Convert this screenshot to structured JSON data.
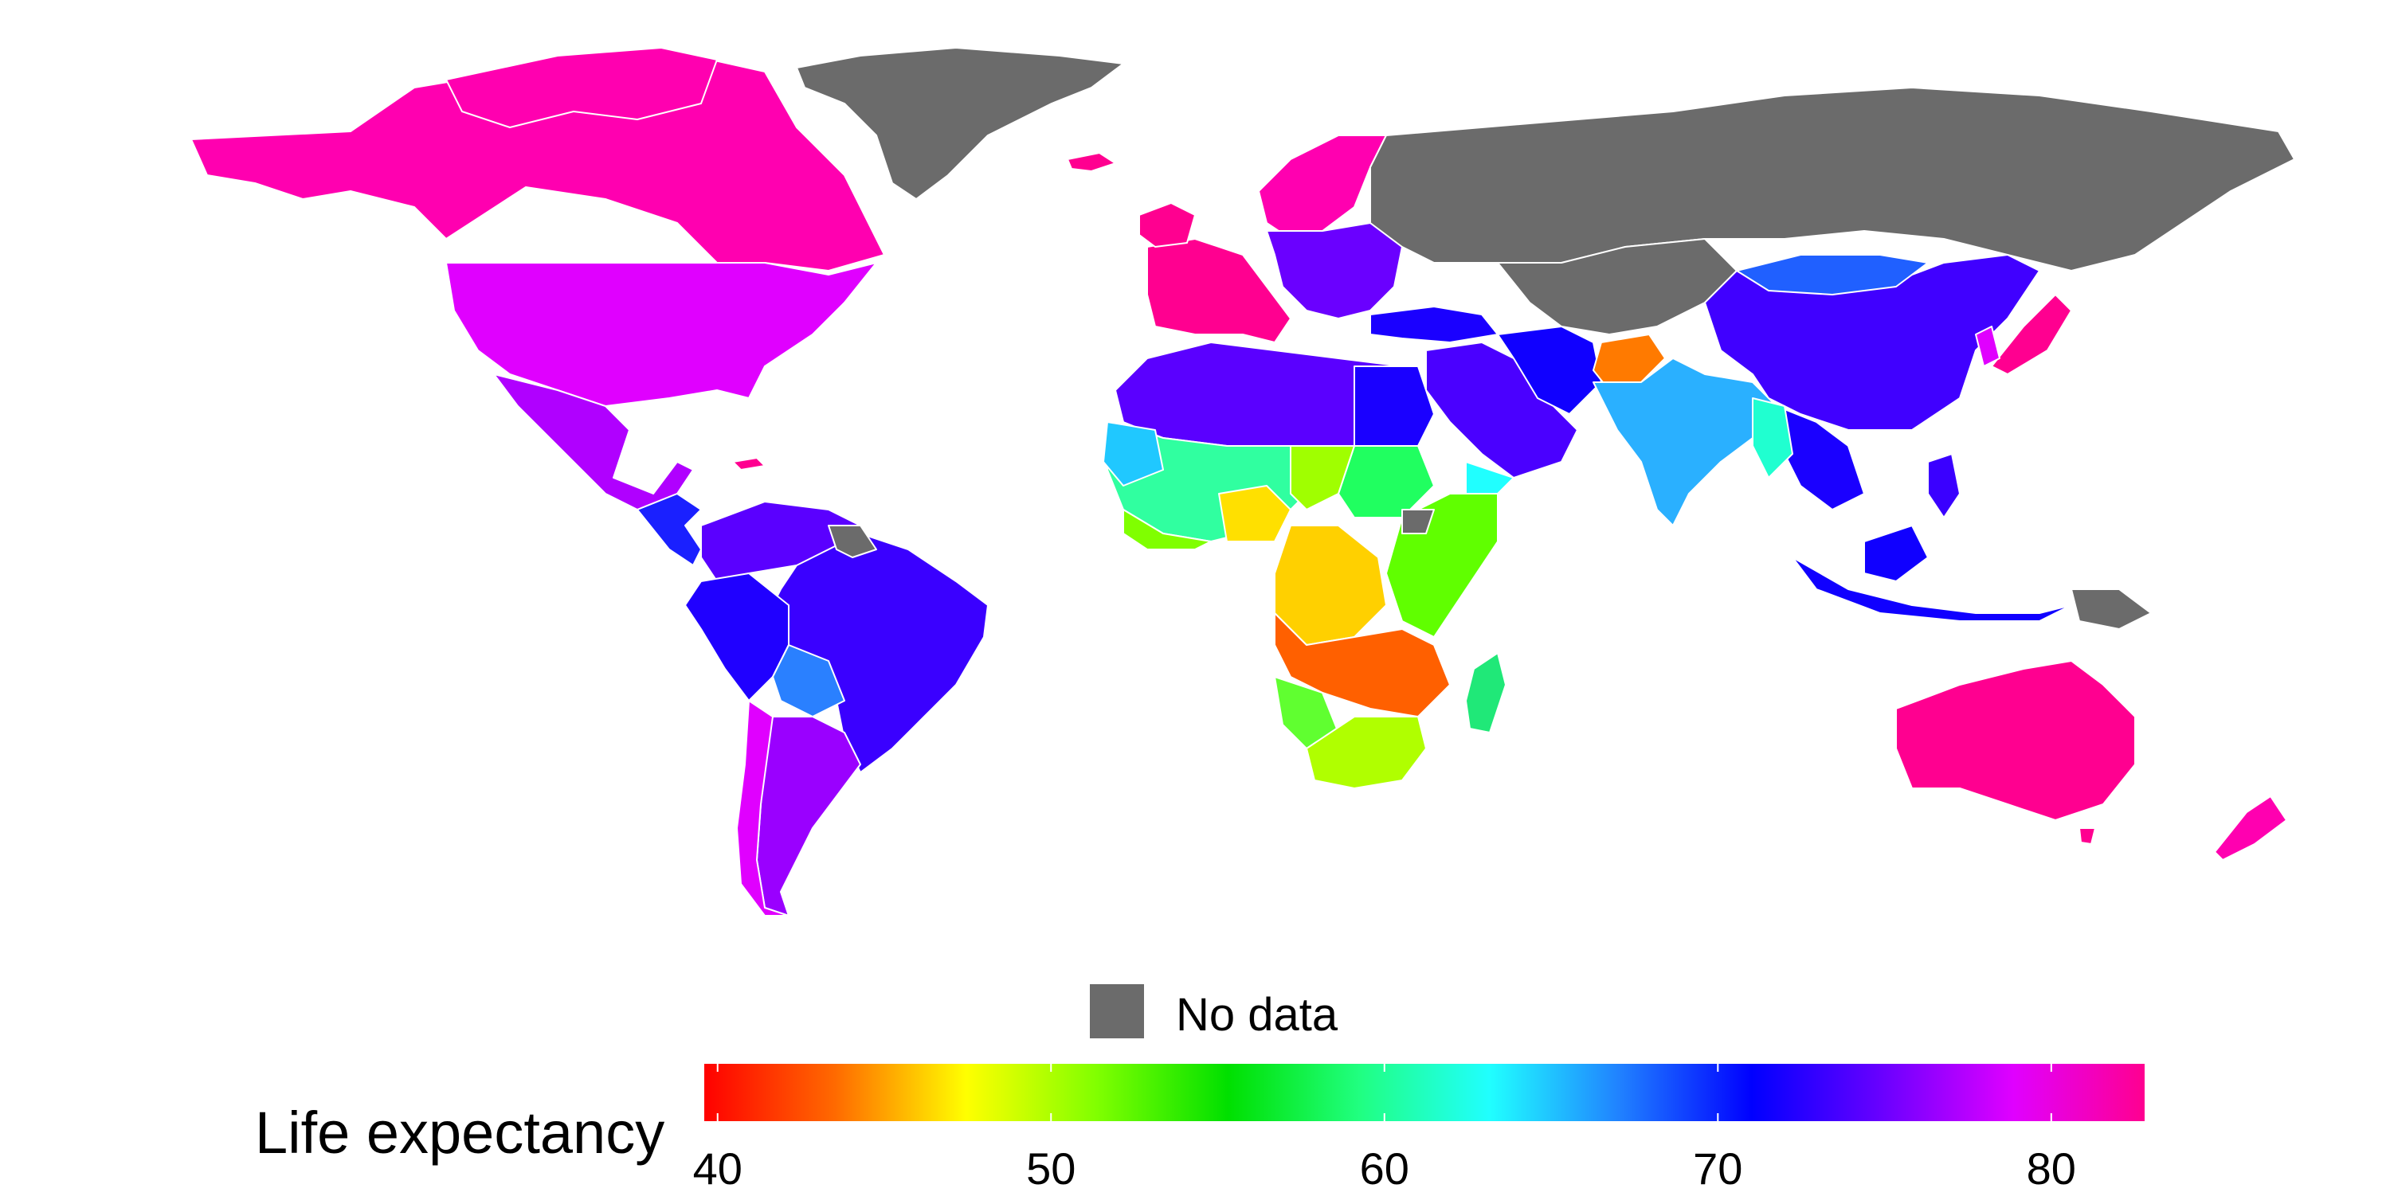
{
  "legend": {
    "title": "Life expectancy",
    "no_data_label": "No data",
    "no_data_color": "#6b6b6b",
    "ticks": [
      "40",
      "50",
      "60",
      "70",
      "80"
    ],
    "tick_values": [
      40,
      50,
      60,
      70,
      80
    ],
    "range": [
      39.6,
      82.8
    ],
    "gradient_colors": [
      "#ff0000",
      "#ff6a00",
      "#ffff00",
      "#80ff00",
      "#00e000",
      "#20ff80",
      "#20ffff",
      "#2080ff",
      "#0000ff",
      "#6a00ff",
      "#e000ff",
      "#ff0090"
    ]
  },
  "map": {
    "border_color": "#ffffff",
    "regions": [
      {
        "name": "Greenland",
        "value": null
      },
      {
        "name": "Russia",
        "value": null
      },
      {
        "name": "Canada",
        "value": 82
      },
      {
        "name": "United States",
        "value": 79
      },
      {
        "name": "Mexico",
        "value": 76
      },
      {
        "name": "Central America",
        "value": 73
      },
      {
        "name": "Brazil",
        "value": 74
      },
      {
        "name": "Bolivia",
        "value": 67
      },
      {
        "name": "Argentina",
        "value": 76
      },
      {
        "name": "Chile",
        "value": 79
      },
      {
        "name": "Western Europe",
        "value": 81
      },
      {
        "name": "Eastern Europe",
        "value": 76
      },
      {
        "name": "North Africa",
        "value": 72
      },
      {
        "name": "West Africa",
        "value": 56
      },
      {
        "name": "Central Africa",
        "value": 48
      },
      {
        "name": "Southern Africa",
        "value": 43
      },
      {
        "name": "Madagascar",
        "value": 60
      },
      {
        "name": "Middle East",
        "value": 74
      },
      {
        "name": "Afghanistan",
        "value": 44
      },
      {
        "name": "India",
        "value": 66
      },
      {
        "name": "China",
        "value": 75
      },
      {
        "name": "Mongolia",
        "value": 67
      },
      {
        "name": "Japan",
        "value": 82
      },
      {
        "name": "Southeast Asia",
        "value": 71
      },
      {
        "name": "Papua New Guinea",
        "value": null
      },
      {
        "name": "Australia",
        "value": 82
      },
      {
        "name": "New Zealand",
        "value": 80
      }
    ]
  }
}
